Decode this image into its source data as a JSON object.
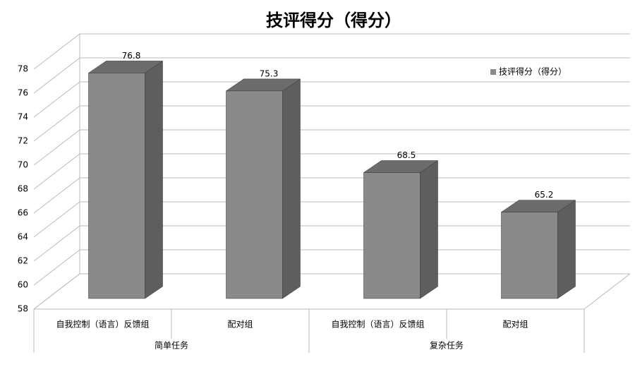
{
  "chart_data": {
    "type": "bar3d",
    "title": "技评得分（得分）",
    "categories": [
      "自我控制（语言）反馈组",
      "配对组",
      "自我控制（语言）反馈组",
      "配对组"
    ],
    "groups": [
      {
        "label": "简单任务",
        "span": 2
      },
      {
        "label": "复杂任务",
        "span": 2
      }
    ],
    "series": [
      {
        "name": "技评得分（得分）",
        "color": "#8a8a8a",
        "values": [
          76.8,
          75.3,
          68.5,
          65.2
        ]
      }
    ],
    "ylim": [
      58,
      78
    ],
    "yticks": [
      58,
      60,
      62,
      64,
      66,
      68,
      70,
      72,
      74,
      76,
      78
    ],
    "grid": true,
    "data_labels": true,
    "legend": "top-right"
  }
}
